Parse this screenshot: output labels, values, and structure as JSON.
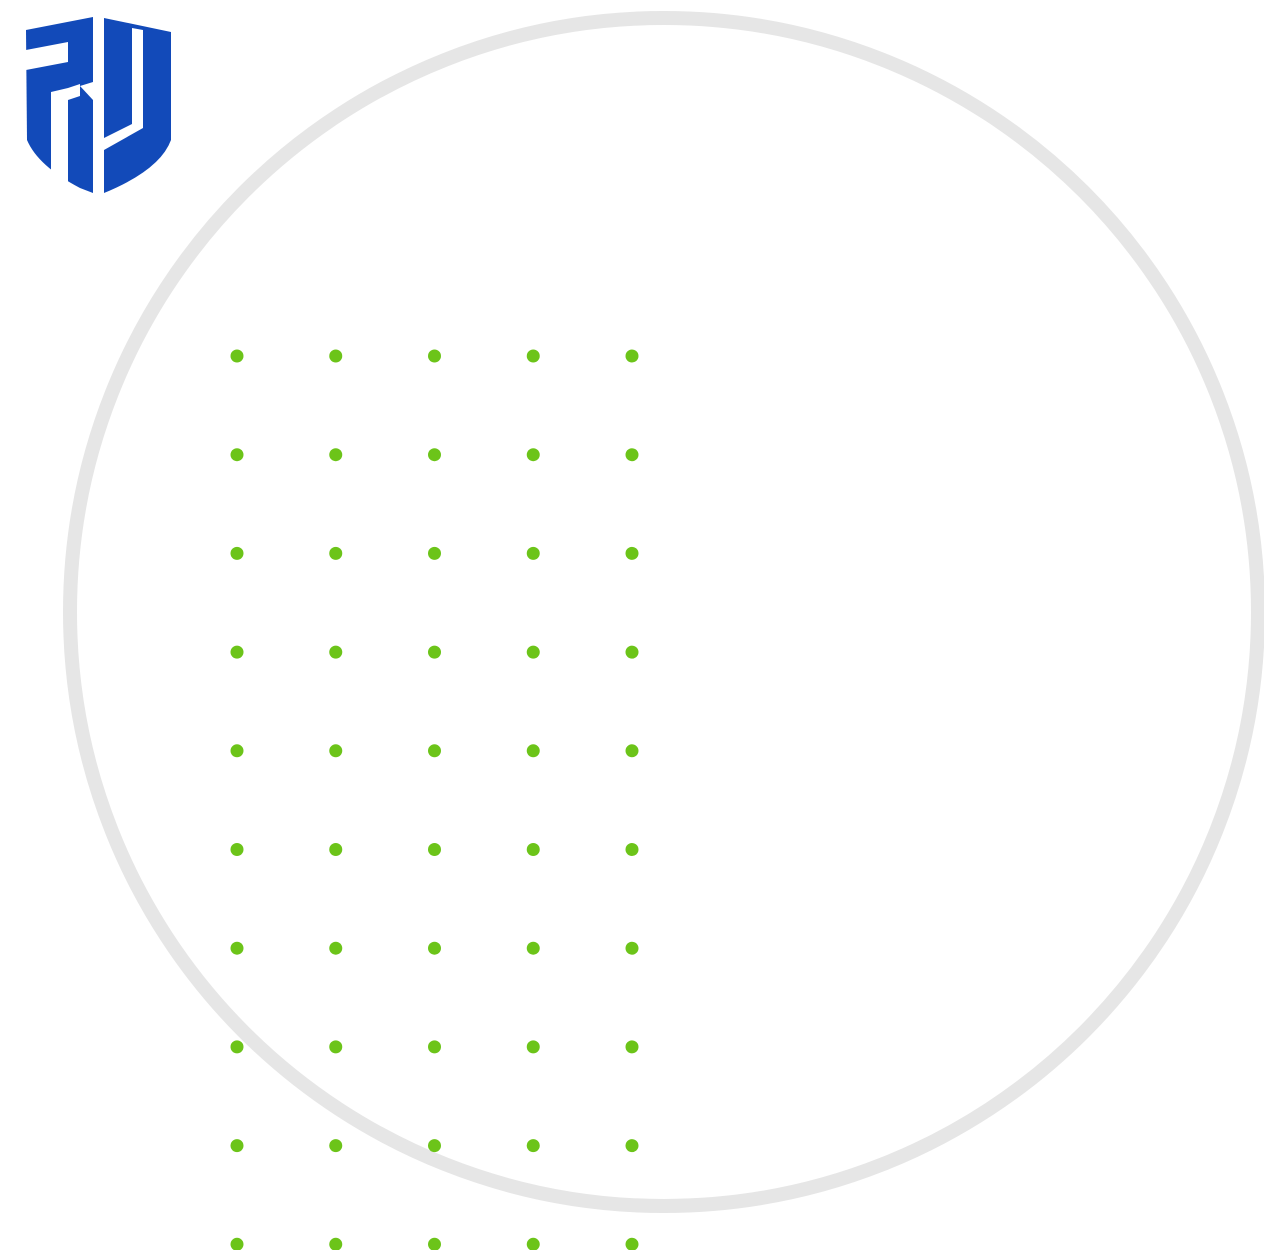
{
  "logo": {
    "text": "RU",
    "color": "#124ab9"
  },
  "decoration": {
    "ring_color": "#e6e6e6",
    "dot_color": "#6cc419",
    "dot_grid": {
      "columns": 5,
      "rows": 10
    }
  }
}
